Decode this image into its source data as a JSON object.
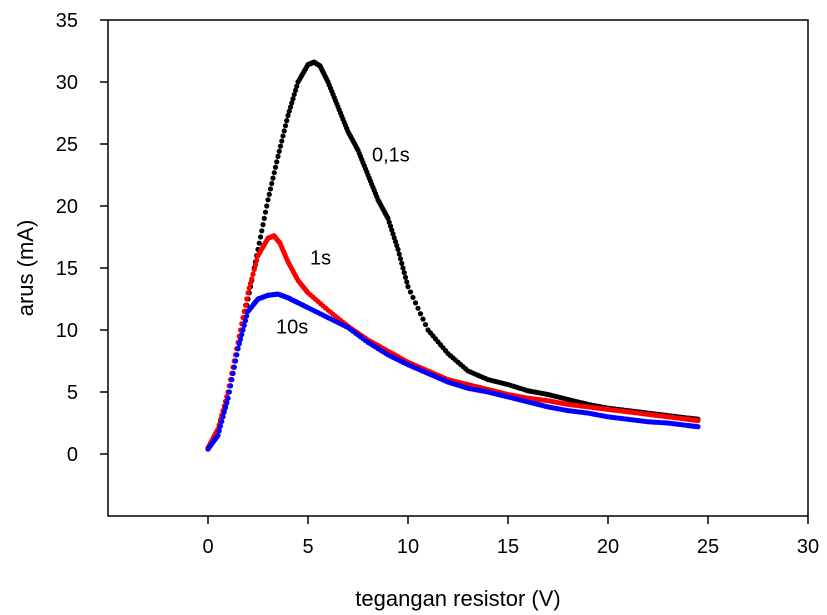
{
  "chart_data": {
    "type": "scatter",
    "xlabel": "tegangan resistor (V)",
    "ylabel": "arus (mA)",
    "xlim": [
      -5,
      30
    ],
    "ylim": [
      -5,
      35
    ],
    "xticks": [
      0,
      5,
      10,
      15,
      20,
      25,
      30
    ],
    "yticks": [
      0,
      5,
      10,
      15,
      20,
      25,
      30,
      35
    ],
    "grid": false,
    "annotations": [
      {
        "text": "0,1s",
        "x": 8.2,
        "y": 23.6
      },
      {
        "text": "1s",
        "x": 5.1,
        "y": 15.3
      },
      {
        "text": "10s",
        "x": 3.4,
        "y": 9.7
      }
    ],
    "series": [
      {
        "name": "0,1s",
        "color": "#000000",
        "x": [
          0,
          0.5,
          1,
          1.5,
          2,
          2.5,
          3,
          3.5,
          4,
          4.5,
          5,
          5.3,
          5.6,
          6,
          6.5,
          7,
          7.5,
          8,
          8.5,
          9,
          9.5,
          10,
          11,
          12,
          13,
          14,
          15,
          16,
          17,
          18,
          19,
          20,
          21,
          22,
          23,
          24,
          24.5
        ],
        "y": [
          0.4,
          2.0,
          4.5,
          8.5,
          12.5,
          16.5,
          20.5,
          24.0,
          27.3,
          30.0,
          31.4,
          31.6,
          31.3,
          30.0,
          28.0,
          26.0,
          24.5,
          22.5,
          20.5,
          19.0,
          16.5,
          13.5,
          10.0,
          8.1,
          6.7,
          6.0,
          5.6,
          5.1,
          4.8,
          4.4,
          4.0,
          3.7,
          3.5,
          3.3,
          3.1,
          2.9,
          2.8
        ]
      },
      {
        "name": "1s",
        "color": "#ff0000",
        "x": [
          0,
          0.5,
          1,
          1.5,
          2,
          2.5,
          3,
          3.3,
          3.6,
          4,
          4.5,
          5,
          6,
          7,
          8,
          9,
          10,
          11,
          12,
          13,
          14,
          15,
          16,
          17,
          18,
          19,
          20,
          21,
          22,
          23,
          24,
          24.5
        ],
        "y": [
          0.5,
          2.0,
          5.0,
          9.0,
          13.0,
          16.0,
          17.4,
          17.6,
          17.0,
          15.5,
          14.0,
          13.0,
          11.6,
          10.3,
          9.2,
          8.3,
          7.4,
          6.7,
          6.0,
          5.6,
          5.2,
          4.8,
          4.5,
          4.3,
          4.0,
          3.8,
          3.6,
          3.4,
          3.2,
          3.0,
          2.8,
          2.7
        ]
      },
      {
        "name": "10s",
        "color": "#0000ff",
        "x": [
          0,
          0.5,
          1,
          1.5,
          2,
          2.5,
          3,
          3.5,
          4,
          4.5,
          5,
          6,
          7,
          8,
          9,
          10,
          11,
          12,
          13,
          14,
          15,
          16,
          17,
          18,
          19,
          20,
          21,
          22,
          23,
          24,
          24.5
        ],
        "y": [
          0.4,
          1.5,
          4.5,
          8.5,
          11.5,
          12.5,
          12.8,
          12.9,
          12.6,
          12.2,
          11.8,
          11.0,
          10.2,
          9.0,
          8.0,
          7.2,
          6.5,
          5.8,
          5.3,
          5.0,
          4.6,
          4.2,
          3.8,
          3.5,
          3.3,
          3.0,
          2.8,
          2.6,
          2.5,
          2.3,
          2.2
        ]
      }
    ]
  }
}
